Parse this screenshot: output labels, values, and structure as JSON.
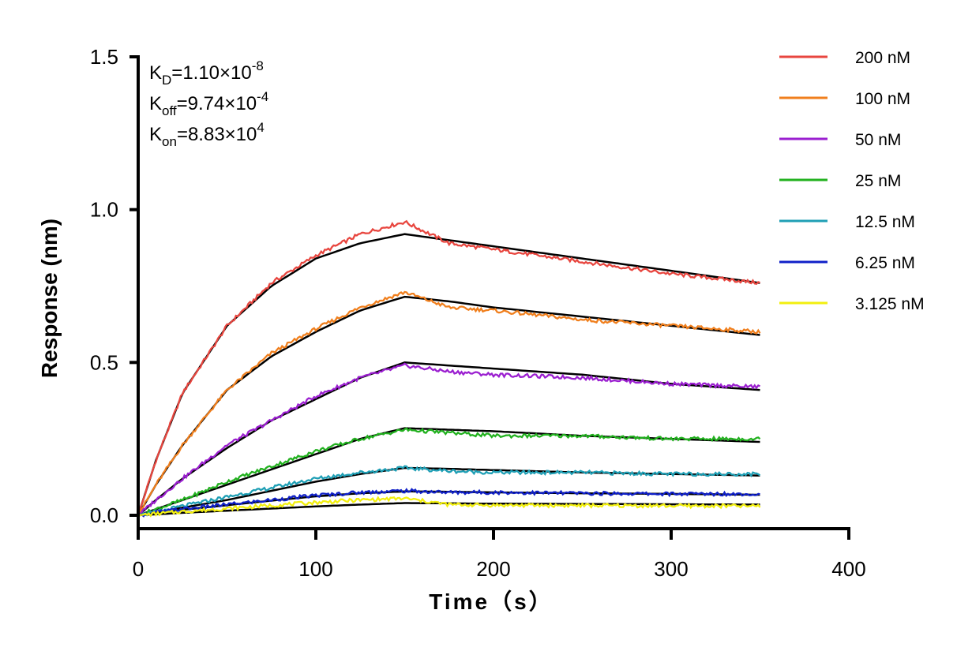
{
  "chart_data": {
    "type": "line",
    "xlabel": "Time（s）",
    "ylabel": "Response (nm)",
    "xlim": [
      0,
      400
    ],
    "ylim": [
      0,
      1.5
    ],
    "xticks": [
      "0",
      "100",
      "200",
      "300",
      "400"
    ],
    "yticks": [
      "0.0",
      "0.5",
      "1.0",
      "1.5"
    ],
    "xtick_values": [
      0,
      100,
      200,
      300,
      400
    ],
    "ytick_values": [
      0,
      0.5,
      1.0,
      1.5
    ],
    "grid": false,
    "legend_position": "top-right",
    "association_end": 150,
    "end_time": 350,
    "annotations": [
      {
        "main": "K",
        "sub": "D",
        "value": "=1.10×10",
        "exp": "-8"
      },
      {
        "main": "K",
        "sub": "off",
        "value": "=9.74×10",
        "exp": "-4"
      },
      {
        "main": "K",
        "sub": "on",
        "value": "=8.83×10",
        "exp": "4"
      }
    ],
    "series": [
      {
        "name": "200 nM",
        "color": "#e8463f",
        "x": [
          0,
          10,
          25,
          50,
          75,
          100,
          125,
          150,
          175,
          200,
          250,
          300,
          350
        ],
        "y": [
          0,
          0.18,
          0.4,
          0.62,
          0.76,
          0.85,
          0.92,
          0.96,
          0.89,
          0.87,
          0.83,
          0.79,
          0.76
        ]
      },
      {
        "name": "100 nM",
        "color": "#f07f1d",
        "x": [
          0,
          10,
          25,
          50,
          75,
          100,
          125,
          150,
          175,
          200,
          250,
          300,
          350
        ],
        "y": [
          0,
          0.1,
          0.23,
          0.41,
          0.53,
          0.61,
          0.68,
          0.73,
          0.68,
          0.67,
          0.64,
          0.62,
          0.6
        ]
      },
      {
        "name": "50 nM",
        "color": "#9b1fd0",
        "x": [
          0,
          10,
          25,
          50,
          75,
          100,
          125,
          150,
          175,
          200,
          250,
          300,
          350
        ],
        "y": [
          0,
          0.05,
          0.12,
          0.23,
          0.31,
          0.39,
          0.45,
          0.49,
          0.47,
          0.46,
          0.45,
          0.43,
          0.42
        ]
      },
      {
        "name": "25 nM",
        "color": "#22b11f",
        "x": [
          0,
          10,
          25,
          50,
          75,
          100,
          125,
          150,
          175,
          200,
          250,
          300,
          350
        ],
        "y": [
          0,
          0.02,
          0.05,
          0.11,
          0.16,
          0.21,
          0.25,
          0.28,
          0.27,
          0.26,
          0.26,
          0.25,
          0.25
        ]
      },
      {
        "name": "12.5 nM",
        "color": "#1f9fb5",
        "x": [
          0,
          10,
          25,
          50,
          75,
          100,
          125,
          150,
          175,
          200,
          250,
          300,
          350
        ],
        "y": [
          0,
          0.01,
          0.03,
          0.06,
          0.09,
          0.12,
          0.14,
          0.155,
          0.145,
          0.14,
          0.14,
          0.135,
          0.135
        ]
      },
      {
        "name": "6.25 nM",
        "color": "#1020c8",
        "x": [
          0,
          10,
          25,
          50,
          75,
          100,
          125,
          150,
          175,
          200,
          250,
          300,
          350
        ],
        "y": [
          0,
          0.01,
          0.02,
          0.035,
          0.05,
          0.065,
          0.075,
          0.08,
          0.075,
          0.075,
          0.072,
          0.07,
          0.07
        ]
      },
      {
        "name": "3.125 nM",
        "color": "#f2ef0f",
        "x": [
          0,
          10,
          25,
          50,
          75,
          100,
          125,
          150,
          175,
          200,
          250,
          300,
          350
        ],
        "y": [
          0,
          0.005,
          0.012,
          0.022,
          0.032,
          0.042,
          0.05,
          0.055,
          0.035,
          0.033,
          0.032,
          0.031,
          0.03
        ]
      }
    ],
    "fits": [
      {
        "x": [
          0,
          10,
          25,
          50,
          75,
          100,
          125,
          150,
          175,
          200,
          250,
          300,
          350
        ],
        "y": [
          0,
          0.18,
          0.4,
          0.62,
          0.75,
          0.84,
          0.89,
          0.92,
          0.9,
          0.88,
          0.84,
          0.8,
          0.76
        ]
      },
      {
        "x": [
          0,
          10,
          25,
          50,
          75,
          100,
          125,
          150,
          175,
          200,
          250,
          300,
          350
        ],
        "y": [
          0,
          0.1,
          0.23,
          0.41,
          0.52,
          0.6,
          0.67,
          0.715,
          0.7,
          0.68,
          0.65,
          0.62,
          0.59
        ]
      },
      {
        "x": [
          0,
          10,
          25,
          50,
          75,
          100,
          125,
          150,
          175,
          200,
          250,
          300,
          350
        ],
        "y": [
          0,
          0.05,
          0.12,
          0.22,
          0.31,
          0.38,
          0.45,
          0.5,
          0.49,
          0.48,
          0.46,
          0.43,
          0.41
        ]
      },
      {
        "x": [
          0,
          10,
          25,
          50,
          75,
          100,
          125,
          150,
          175,
          200,
          250,
          300,
          350
        ],
        "y": [
          0,
          0.02,
          0.05,
          0.1,
          0.15,
          0.2,
          0.25,
          0.285,
          0.28,
          0.275,
          0.26,
          0.25,
          0.24
        ]
      },
      {
        "x": [
          0,
          10,
          25,
          50,
          75,
          100,
          125,
          150,
          175,
          200,
          250,
          300,
          350
        ],
        "y": [
          0,
          0.01,
          0.025,
          0.05,
          0.08,
          0.11,
          0.135,
          0.155,
          0.152,
          0.148,
          0.14,
          0.135,
          0.13
        ]
      },
      {
        "x": [
          0,
          10,
          25,
          50,
          75,
          100,
          125,
          150,
          175,
          200,
          250,
          300,
          350
        ],
        "y": [
          0,
          0.007,
          0.018,
          0.033,
          0.048,
          0.062,
          0.072,
          0.078,
          0.077,
          0.075,
          0.072,
          0.07,
          0.067
        ]
      },
      {
        "x": [
          0,
          10,
          25,
          50,
          75,
          100,
          125,
          150,
          175,
          200,
          250,
          300,
          350
        ],
        "y": [
          0,
          0.003,
          0.008,
          0.015,
          0.022,
          0.029,
          0.035,
          0.04,
          0.039,
          0.038,
          0.037,
          0.036,
          0.035
        ]
      }
    ]
  }
}
